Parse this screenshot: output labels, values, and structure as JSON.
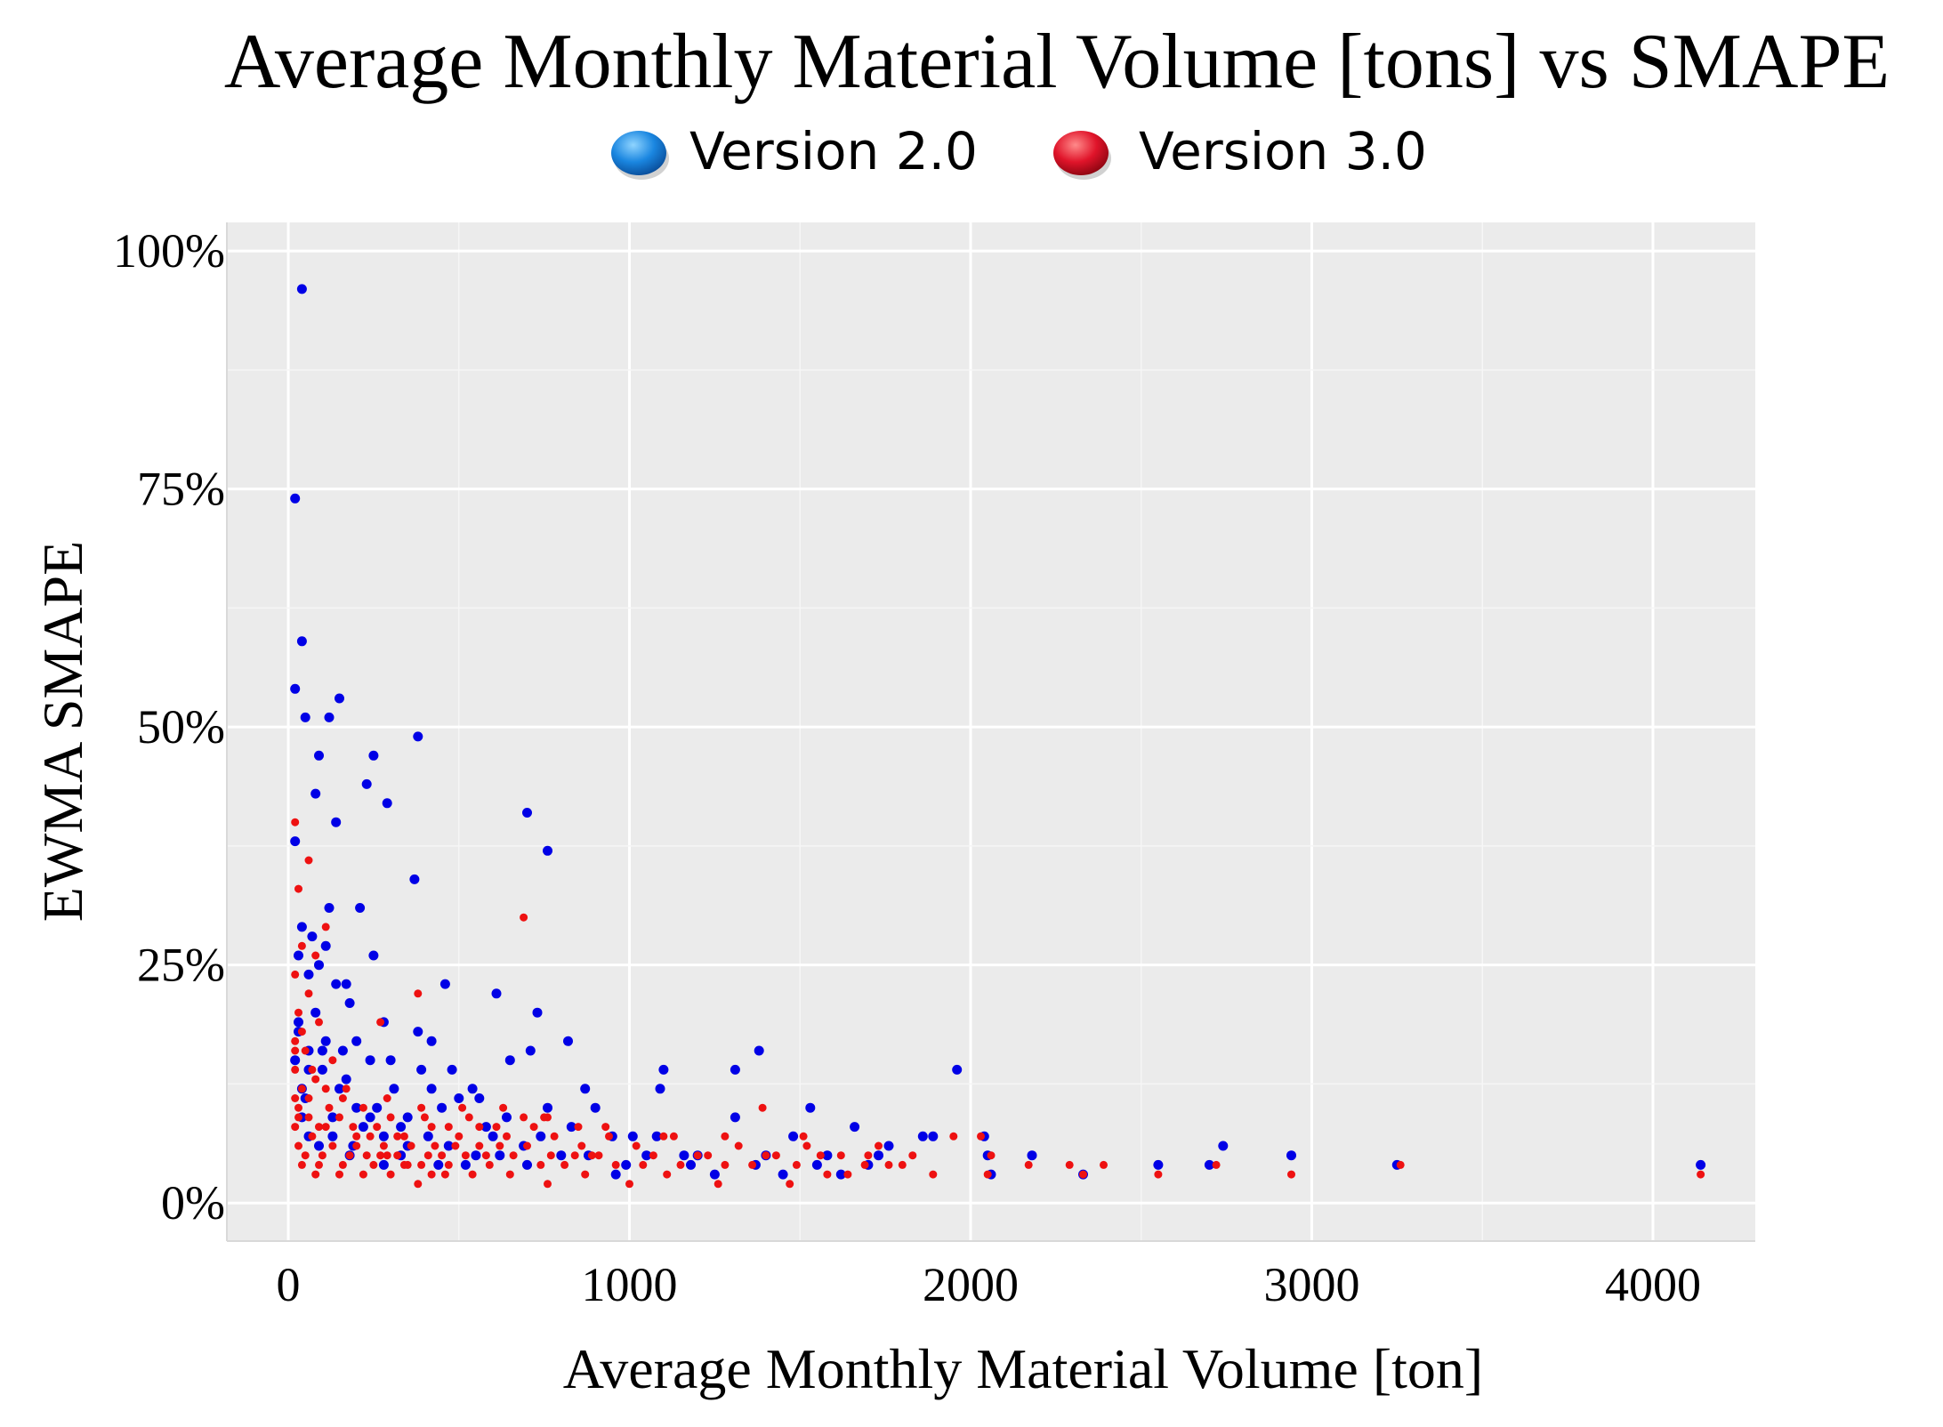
{
  "chart_data": {
    "type": "scatter",
    "title": "Average Monthly Material Volume [tons] vs SMAPE",
    "xlabel": "Average Monthly Material Volume [ton]",
    "ylabel": "EWMA SMAPE",
    "xlim": [
      -180,
      4300
    ],
    "ylim": [
      -0.04,
      1.03
    ],
    "x_ticks": [
      0,
      1000,
      2000,
      3000,
      4000
    ],
    "x_tick_labels": [
      "0",
      "1000",
      "2000",
      "3000",
      "4000"
    ],
    "y_ticks": [
      0,
      0.25,
      0.5,
      0.75,
      1.0
    ],
    "y_tick_labels": [
      "0%",
      "25%",
      "50%",
      "75%",
      "100%"
    ],
    "grid": true,
    "legend_position": "top-center",
    "series": [
      {
        "name": "Version 2.0",
        "color": "#0000e6",
        "points": [
          [
            40,
            0.96
          ],
          [
            20,
            0.74
          ],
          [
            40,
            0.59
          ],
          [
            20,
            0.54
          ],
          [
            50,
            0.51
          ],
          [
            120,
            0.51
          ],
          [
            150,
            0.53
          ],
          [
            90,
            0.47
          ],
          [
            250,
            0.47
          ],
          [
            380,
            0.49
          ],
          [
            80,
            0.43
          ],
          [
            230,
            0.44
          ],
          [
            290,
            0.42
          ],
          [
            140,
            0.4
          ],
          [
            700,
            0.41
          ],
          [
            760,
            0.37
          ],
          [
            20,
            0.38
          ],
          [
            370,
            0.34
          ],
          [
            120,
            0.31
          ],
          [
            210,
            0.31
          ],
          [
            40,
            0.29
          ],
          [
            70,
            0.28
          ],
          [
            110,
            0.27
          ],
          [
            30,
            0.26
          ],
          [
            250,
            0.26
          ],
          [
            90,
            0.25
          ],
          [
            60,
            0.24
          ],
          [
            140,
            0.23
          ],
          [
            170,
            0.23
          ],
          [
            460,
            0.23
          ],
          [
            610,
            0.22
          ],
          [
            180,
            0.21
          ],
          [
            80,
            0.2
          ],
          [
            730,
            0.2
          ],
          [
            30,
            0.19
          ],
          [
            280,
            0.19
          ],
          [
            380,
            0.18
          ],
          [
            30,
            0.18
          ],
          [
            110,
            0.17
          ],
          [
            200,
            0.17
          ],
          [
            420,
            0.17
          ],
          [
            160,
            0.16
          ],
          [
            60,
            0.16
          ],
          [
            650,
            0.15
          ],
          [
            710,
            0.16
          ],
          [
            820,
            0.17
          ],
          [
            1380,
            0.16
          ],
          [
            240,
            0.15
          ],
          [
            300,
            0.15
          ],
          [
            390,
            0.14
          ],
          [
            480,
            0.14
          ],
          [
            20,
            0.15
          ],
          [
            100,
            0.14
          ],
          [
            1100,
            0.14
          ],
          [
            1310,
            0.14
          ],
          [
            1960,
            0.14
          ],
          [
            500,
            0.11
          ],
          [
            560,
            0.11
          ],
          [
            150,
            0.12
          ],
          [
            310,
            0.12
          ],
          [
            540,
            0.12
          ],
          [
            870,
            0.12
          ],
          [
            1090,
            0.12
          ],
          [
            1530,
            0.1
          ],
          [
            1310,
            0.09
          ],
          [
            1660,
            0.08
          ],
          [
            40,
            0.09
          ],
          [
            200,
            0.1
          ],
          [
            350,
            0.09
          ],
          [
            450,
            0.1
          ],
          [
            640,
            0.09
          ],
          [
            900,
            0.1
          ],
          [
            1010,
            0.07
          ],
          [
            1480,
            0.07
          ],
          [
            60,
            0.07
          ],
          [
            130,
            0.07
          ],
          [
            220,
            0.08
          ],
          [
            280,
            0.07
          ],
          [
            410,
            0.07
          ],
          [
            600,
            0.07
          ],
          [
            740,
            0.07
          ],
          [
            830,
            0.08
          ],
          [
            950,
            0.07
          ],
          [
            1080,
            0.07
          ],
          [
            1200,
            0.05
          ],
          [
            1760,
            0.06
          ],
          [
            1860,
            0.07
          ],
          [
            1890,
            0.07
          ],
          [
            2040,
            0.07
          ],
          [
            2180,
            0.05
          ],
          [
            2740,
            0.06
          ],
          [
            2940,
            0.05
          ],
          [
            2050,
            0.05
          ],
          [
            1730,
            0.05
          ],
          [
            1400,
            0.05
          ],
          [
            1160,
            0.05
          ],
          [
            2550,
            0.04
          ],
          [
            2700,
            0.04
          ],
          [
            3250,
            0.04
          ],
          [
            4140,
            0.04
          ],
          [
            2330,
            0.03
          ],
          [
            2060,
            0.03
          ],
          [
            1550,
            0.04
          ],
          [
            1620,
            0.03
          ],
          [
            1450,
            0.03
          ],
          [
            1250,
            0.03
          ],
          [
            960,
            0.03
          ],
          [
            700,
            0.04
          ],
          [
            550,
            0.05
          ],
          [
            330,
            0.05
          ],
          [
            180,
            0.05
          ],
          [
            90,
            0.06
          ],
          [
            50,
            0.11
          ],
          [
            170,
            0.13
          ],
          [
            240,
            0.09
          ],
          [
            330,
            0.08
          ],
          [
            470,
            0.06
          ],
          [
            520,
            0.04
          ],
          [
            690,
            0.06
          ],
          [
            880,
            0.05
          ],
          [
            1050,
            0.05
          ],
          [
            1180,
            0.04
          ],
          [
            1370,
            0.04
          ],
          [
            1580,
            0.05
          ],
          [
            1700,
            0.04
          ],
          [
            100,
            0.16
          ],
          [
            260,
            0.1
          ],
          [
            420,
            0.12
          ],
          [
            580,
            0.08
          ],
          [
            760,
            0.1
          ],
          [
            40,
            0.12
          ],
          [
            130,
            0.09
          ],
          [
            350,
            0.06
          ],
          [
            60,
            0.14
          ],
          [
            190,
            0.06
          ],
          [
            280,
            0.04
          ],
          [
            440,
            0.04
          ],
          [
            620,
            0.05
          ],
          [
            800,
            0.05
          ],
          [
            990,
            0.04
          ]
        ]
      },
      {
        "name": "Version 3.0",
        "color": "#ee1111",
        "points": [
          [
            20,
            0.4
          ],
          [
            60,
            0.36
          ],
          [
            30,
            0.33
          ],
          [
            110,
            0.29
          ],
          [
            40,
            0.27
          ],
          [
            80,
            0.26
          ],
          [
            690,
            0.3
          ],
          [
            20,
            0.24
          ],
          [
            60,
            0.22
          ],
          [
            380,
            0.22
          ],
          [
            30,
            0.2
          ],
          [
            90,
            0.19
          ],
          [
            270,
            0.19
          ],
          [
            20,
            0.17
          ],
          [
            50,
            0.16
          ],
          [
            130,
            0.15
          ],
          [
            20,
            0.14
          ],
          [
            80,
            0.13
          ],
          [
            40,
            0.12
          ],
          [
            170,
            0.12
          ],
          [
            20,
            0.11
          ],
          [
            60,
            0.11
          ],
          [
            120,
            0.1
          ],
          [
            220,
            0.1
          ],
          [
            300,
            0.09
          ],
          [
            1390,
            0.1
          ],
          [
            30,
            0.09
          ],
          [
            90,
            0.08
          ],
          [
            150,
            0.09
          ],
          [
            260,
            0.08
          ],
          [
            340,
            0.07
          ],
          [
            420,
            0.08
          ],
          [
            500,
            0.07
          ],
          [
            560,
            0.08
          ],
          [
            640,
            0.07
          ],
          [
            720,
            0.08
          ],
          [
            780,
            0.07
          ],
          [
            860,
            0.06
          ],
          [
            940,
            0.07
          ],
          [
            1020,
            0.06
          ],
          [
            1100,
            0.07
          ],
          [
            1200,
            0.05
          ],
          [
            1320,
            0.06
          ],
          [
            1430,
            0.05
          ],
          [
            1520,
            0.06
          ],
          [
            1620,
            0.05
          ],
          [
            1700,
            0.05
          ],
          [
            1760,
            0.04
          ],
          [
            1830,
            0.05
          ],
          [
            1950,
            0.07
          ],
          [
            2030,
            0.07
          ],
          [
            2170,
            0.04
          ],
          [
            2290,
            0.04
          ],
          [
            2330,
            0.03
          ],
          [
            2550,
            0.03
          ],
          [
            2720,
            0.04
          ],
          [
            2940,
            0.03
          ],
          [
            3260,
            0.04
          ],
          [
            4140,
            0.03
          ],
          [
            2050,
            0.03
          ],
          [
            1890,
            0.03
          ],
          [
            1640,
            0.03
          ],
          [
            1470,
            0.02
          ],
          [
            1260,
            0.02
          ],
          [
            1110,
            0.03
          ],
          [
            1000,
            0.02
          ],
          [
            870,
            0.03
          ],
          [
            760,
            0.02
          ],
          [
            650,
            0.03
          ],
          [
            540,
            0.03
          ],
          [
            460,
            0.03
          ],
          [
            380,
            0.02
          ],
          [
            300,
            0.03
          ],
          [
            220,
            0.03
          ],
          [
            150,
            0.03
          ],
          [
            80,
            0.03
          ],
          [
            40,
            0.04
          ],
          [
            100,
            0.05
          ],
          [
            180,
            0.05
          ],
          [
            250,
            0.04
          ],
          [
            320,
            0.05
          ],
          [
            390,
            0.04
          ],
          [
            450,
            0.05
          ],
          [
            520,
            0.05
          ],
          [
            590,
            0.04
          ],
          [
            660,
            0.05
          ],
          [
            740,
            0.04
          ],
          [
            810,
            0.04
          ],
          [
            890,
            0.05
          ],
          [
            960,
            0.04
          ],
          [
            1040,
            0.04
          ],
          [
            1150,
            0.04
          ],
          [
            1280,
            0.04
          ],
          [
            1360,
            0.04
          ],
          [
            1490,
            0.04
          ],
          [
            1580,
            0.03
          ],
          [
            1690,
            0.04
          ],
          [
            1800,
            0.04
          ],
          [
            30,
            0.06
          ],
          [
            70,
            0.07
          ],
          [
            130,
            0.06
          ],
          [
            200,
            0.07
          ],
          [
            280,
            0.06
          ],
          [
            360,
            0.06
          ],
          [
            430,
            0.06
          ],
          [
            490,
            0.06
          ],
          [
            560,
            0.06
          ],
          [
            620,
            0.06
          ],
          [
            700,
            0.06
          ],
          [
            770,
            0.05
          ],
          [
            840,
            0.05
          ],
          [
            910,
            0.05
          ],
          [
            1070,
            0.05
          ],
          [
            1230,
            0.05
          ],
          [
            1400,
            0.05
          ],
          [
            1560,
            0.05
          ],
          [
            2060,
            0.05
          ],
          [
            2390,
            0.04
          ],
          [
            60,
            0.09
          ],
          [
            110,
            0.08
          ],
          [
            190,
            0.08
          ],
          [
            240,
            0.07
          ],
          [
            320,
            0.07
          ],
          [
            400,
            0.09
          ],
          [
            470,
            0.08
          ],
          [
            530,
            0.09
          ],
          [
            610,
            0.08
          ],
          [
            690,
            0.09
          ],
          [
            760,
            0.09
          ],
          [
            850,
            0.08
          ],
          [
            20,
            0.08
          ],
          [
            50,
            0.05
          ],
          [
            90,
            0.04
          ],
          [
            160,
            0.04
          ],
          [
            230,
            0.05
          ],
          [
            290,
            0.05
          ],
          [
            350,
            0.04
          ],
          [
            410,
            0.05
          ],
          [
            470,
            0.04
          ],
          [
            580,
            0.05
          ],
          [
            20,
            0.16
          ],
          [
            40,
            0.18
          ],
          [
            70,
            0.14
          ],
          [
            160,
            0.11
          ],
          [
            290,
            0.11
          ],
          [
            390,
            0.1
          ],
          [
            510,
            0.1
          ],
          [
            630,
            0.1
          ],
          [
            750,
            0.09
          ],
          [
            930,
            0.08
          ],
          [
            1130,
            0.07
          ],
          [
            1280,
            0.07
          ],
          [
            1510,
            0.07
          ],
          [
            1730,
            0.06
          ],
          [
            30,
            0.1
          ],
          [
            110,
            0.12
          ],
          [
            200,
            0.06
          ],
          [
            270,
            0.05
          ],
          [
            340,
            0.04
          ],
          [
            420,
            0.03
          ]
        ]
      }
    ]
  }
}
